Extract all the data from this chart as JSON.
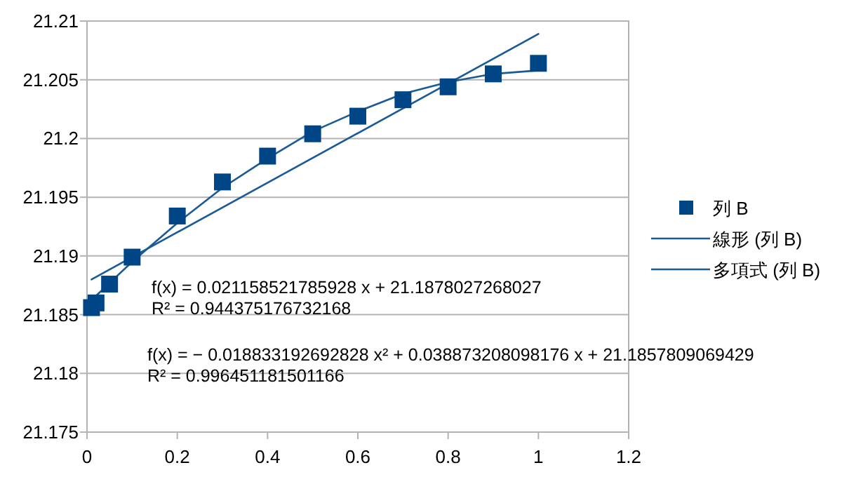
{
  "chart_data": {
    "type": "scatter",
    "marker": "square",
    "grid": "y",
    "legend": "right",
    "xlim": [
      0,
      1.2
    ],
    "xticks": [
      0,
      0.2,
      0.4,
      0.6,
      0.8,
      1,
      1.2
    ],
    "ylim": [
      21.175,
      21.21
    ],
    "yticks": [
      21.175,
      21.18,
      21.185,
      21.19,
      21.195,
      21.2,
      21.205,
      21.21
    ],
    "series": [
      {
        "name": "列 B",
        "color": "#004586",
        "x": [
          0.01,
          0.02,
          0.05,
          0.1,
          0.2,
          0.3,
          0.4,
          0.5,
          0.6,
          0.7,
          0.8,
          0.9,
          1
        ],
        "values": [
          21.1856,
          21.186,
          21.1876,
          21.1899,
          21.1934,
          21.1963,
          21.1985,
          21.2004,
          21.2019,
          21.2033,
          21.2044,
          21.2055,
          21.2064
        ]
      },
      {
        "name": "線形 (列 B)",
        "type": "line",
        "marker": "none",
        "color": "#1a5a96",
        "x": [
          0.01,
          1
        ],
        "values": [
          21.188,
          21.2089
        ]
      },
      {
        "name": "多項式 (列 B)",
        "type": "line",
        "marker": "none",
        "color": "#1a5a96",
        "x": [
          0.01,
          0.02,
          0.05,
          0.1,
          0.2,
          0.3,
          0.4,
          0.5,
          0.6,
          0.7,
          0.8,
          0.9,
          1
        ],
        "values": [
          21.1862,
          21.1866,
          21.1877,
          21.1895,
          21.1928,
          21.1958,
          21.1983,
          21.2006,
          21.2023,
          21.2038,
          21.2048,
          21.2055,
          21.2058
        ]
      }
    ],
    "annotations": [
      "f(x) = 0.021158521785928 x + 21.1878027268027\nR² = 0.944375176732168",
      "f(x) = − 0.018833192692828 x² + 0.038873208098176 x + 21.1857809069429\nR² = 0.996451181501166"
    ]
  }
}
